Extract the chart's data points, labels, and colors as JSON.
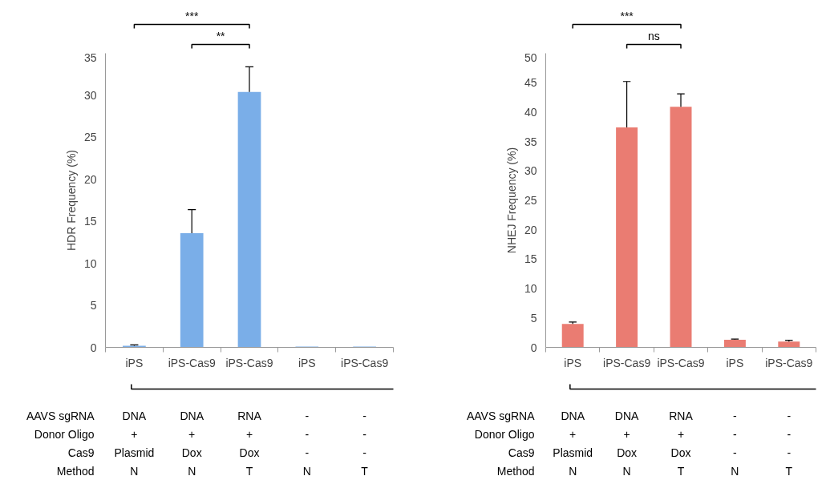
{
  "chart_data": [
    {
      "type": "bar",
      "ylabel": "HDR Frequency (%)",
      "categories": [
        "iPS",
        "iPS-Cas9",
        "iPS-Cas9",
        "iPS",
        "iPS-Cas9"
      ],
      "values": [
        0.2,
        13.6,
        30.4,
        0.1,
        0.1
      ],
      "color": "#7aaee8",
      "errors": [
        [
          0.2,
          0.3
        ],
        [
          13.6,
          16.4
        ],
        [
          30.4,
          33.4
        ],
        null,
        null
      ],
      "ylim": [
        0,
        35
      ],
      "yticks": [
        0,
        5,
        10,
        15,
        20,
        25,
        30,
        35
      ],
      "annotations": [
        "***",
        "**",
        "AAVS sgRNA",
        "DNA",
        "DNA",
        "RNA",
        "-",
        "-",
        "Donor Oligo",
        "+",
        "+",
        "+",
        "-",
        "-",
        "Cas9",
        "Plasmid",
        "Dox",
        "Dox",
        "-",
        "-",
        "Method",
        "N",
        "N",
        "T",
        "N",
        "T"
      ]
    },
    {
      "type": "bar",
      "ylabel": "NHEJ Frequency (%)",
      "categories": [
        "iPS",
        "iPS-Cas9",
        "iPS-Cas9",
        "iPS",
        "iPS-Cas9"
      ],
      "values": [
        4.0,
        37.4,
        40.9,
        1.3,
        1.0
      ],
      "color": "#ea7c72",
      "errors": [
        [
          4.0,
          4.3
        ],
        [
          37.4,
          45.2
        ],
        [
          40.9,
          43.1
        ],
        [
          1.3,
          1.4
        ],
        [
          1.0,
          1.2
        ]
      ],
      "ylim": [
        0,
        50
      ],
      "yticks": [
        0,
        5,
        10,
        15,
        20,
        25,
        30,
        35,
        40,
        45,
        50
      ],
      "annotations": [
        "***",
        "ns",
        "AAVS sgRNA",
        "DNA",
        "DNA",
        "RNA",
        "-",
        "-",
        "Donor Oligo",
        "+",
        "+",
        "+",
        "-",
        "-",
        "Cas9",
        "Plasmid",
        "Dox",
        "Dox",
        "-",
        "-",
        "Method",
        "N",
        "N",
        "T",
        "N",
        "T"
      ]
    }
  ]
}
